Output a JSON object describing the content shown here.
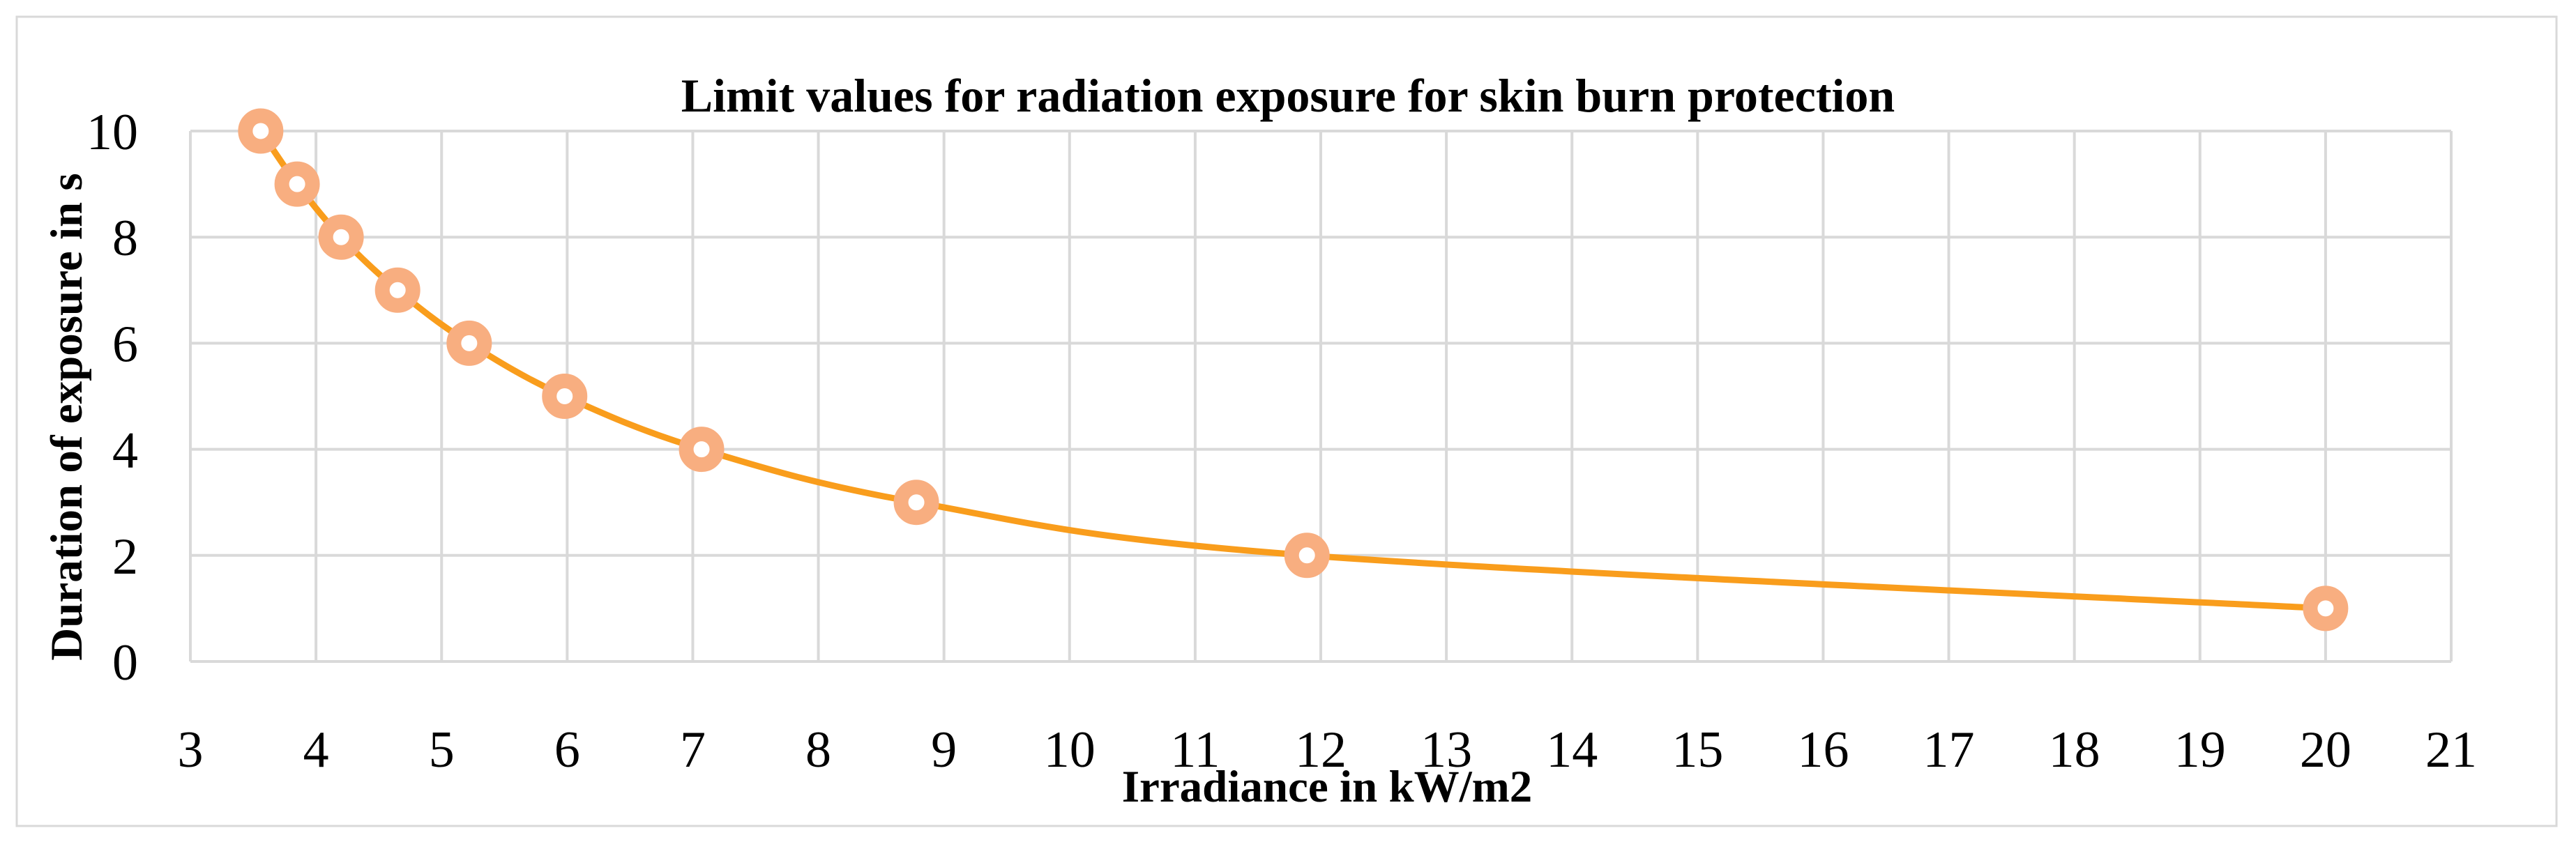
{
  "chart_data": {
    "type": "line",
    "title": "Limit values for radiation exposure for skin burn protection",
    "xlabel": "Irradiance in kW/m2",
    "ylabel": "Duration of exposure in s",
    "xlim": [
      3,
      21
    ],
    "ylim": [
      0,
      10
    ],
    "x_ticks": [
      3,
      4,
      5,
      6,
      7,
      8,
      9,
      10,
      11,
      12,
      13,
      14,
      15,
      16,
      17,
      18,
      19,
      20,
      21
    ],
    "y_ticks": [
      0,
      2,
      4,
      6,
      8,
      10
    ],
    "grid": true,
    "grid_color": "#D9D9D9",
    "border_color": "#D9D9D9",
    "series": [
      {
        "x": [
          3.56,
          3.85,
          4.2,
          4.65,
          5.22,
          5.98,
          7.07,
          8.78,
          11.89,
          20
        ],
        "y": [
          10,
          9,
          8,
          7,
          6,
          5,
          4,
          3,
          2,
          1
        ],
        "line_color": "#F99D1C",
        "marker_color": "#F8AE80"
      }
    ]
  }
}
